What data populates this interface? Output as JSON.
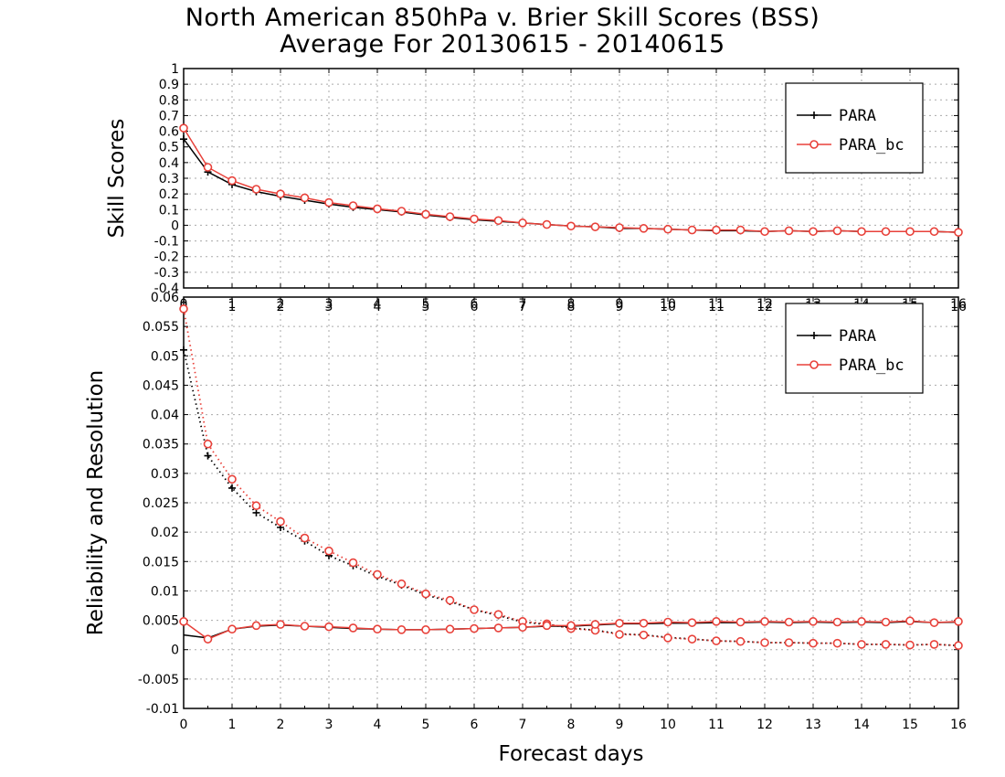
{
  "header": {
    "title_line1": "North American 850hPa v. Brier Skill Scores (BSS)",
    "title_line2": "Average For 20130615 - 20140615"
  },
  "colors": {
    "para": "#000000",
    "para_bc": "#e8413a",
    "grid": "#aaaaaa"
  },
  "chart_data": [
    {
      "type": "line",
      "ylabel": "Skill Scores",
      "xlabel": "",
      "xlim": [
        0,
        16
      ],
      "ylim": [
        -0.4,
        1
      ],
      "x_ticks": [
        "0",
        "1",
        "2",
        "3",
        "4",
        "5",
        "6",
        "7",
        "8",
        "9",
        "10",
        "11",
        "12",
        "13",
        "14",
        "15",
        "16"
      ],
      "y_ticks": [
        "1",
        "0.9",
        "0.8",
        "0.7",
        "0.6",
        "0.5",
        "0.4",
        "0.3",
        "0.2",
        "0.1",
        "0",
        "-0.1",
        "-0.2",
        "-0.3",
        "-0.4"
      ],
      "grid": true,
      "legend_position": "top-right",
      "x": [
        0,
        0.5,
        1,
        1.5,
        2,
        2.5,
        3,
        3.5,
        4,
        4.5,
        5,
        5.5,
        6,
        6.5,
        7,
        7.5,
        8,
        8.5,
        9,
        9.5,
        10,
        10.5,
        11,
        11.5,
        12,
        12.5,
        13,
        13.5,
        14,
        14.5,
        15,
        15.5,
        16
      ],
      "series": [
        {
          "name": "PARA",
          "color": "#000000",
          "marker": "plus",
          "style": "solid",
          "values": [
            0.55,
            0.34,
            0.26,
            0.215,
            0.185,
            0.16,
            0.135,
            0.115,
            0.1,
            0.085,
            0.065,
            0.05,
            0.035,
            0.025,
            0.015,
            0.005,
            -0.005,
            -0.01,
            -0.02,
            -0.02,
            -0.025,
            -0.03,
            -0.035,
            -0.035,
            -0.04,
            -0.035,
            -0.04,
            -0.035,
            -0.04,
            -0.04,
            -0.04,
            -0.04,
            -0.045
          ]
        },
        {
          "name": "PARA_bc",
          "color": "#e8413a",
          "marker": "circle",
          "style": "solid",
          "values": [
            0.62,
            0.37,
            0.285,
            0.23,
            0.2,
            0.175,
            0.145,
            0.125,
            0.105,
            0.09,
            0.07,
            0.055,
            0.04,
            0.03,
            0.015,
            0.005,
            -0.005,
            -0.01,
            -0.015,
            -0.02,
            -0.025,
            -0.03,
            -0.03,
            -0.03,
            -0.04,
            -0.035,
            -0.04,
            -0.035,
            -0.04,
            -0.04,
            -0.04,
            -0.04,
            -0.045
          ]
        }
      ]
    },
    {
      "type": "line",
      "ylabel": "Reliability and Resolution",
      "xlabel": "Forecast days",
      "xlim": [
        0,
        16
      ],
      "ylim": [
        -0.01,
        0.06
      ],
      "x_ticks": [
        "0",
        "1",
        "2",
        "3",
        "4",
        "5",
        "6",
        "7",
        "8",
        "9",
        "10",
        "11",
        "12",
        "13",
        "14",
        "15",
        "16"
      ],
      "top_x_ticks": [
        "0",
        "1",
        "2",
        "3",
        "4",
        "5",
        "6",
        "7",
        "8",
        "9",
        "10",
        "11",
        "12",
        "13",
        "14",
        "15",
        "16"
      ],
      "y_ticks": [
        "0.06",
        "0.055",
        "0.05",
        "0.045",
        "0.04",
        "0.035",
        "0.03",
        "0.025",
        "0.02",
        "0.015",
        "0.01",
        "0.005",
        "0",
        "-0.005",
        "-0.01"
      ],
      "grid": true,
      "legend_position": "top-right",
      "x": [
        0,
        0.5,
        1,
        1.5,
        2,
        2.5,
        3,
        3.5,
        4,
        4.5,
        5,
        5.5,
        6,
        6.5,
        7,
        7.5,
        8,
        8.5,
        9,
        9.5,
        10,
        10.5,
        11,
        11.5,
        12,
        12.5,
        13,
        13.5,
        14,
        14.5,
        15,
        15.5,
        16
      ],
      "series": [
        {
          "name": "PARA",
          "color": "#000000",
          "marker": "plus",
          "style": "dotted",
          "values": [
            0.051,
            0.033,
            0.0275,
            0.0233,
            0.0208,
            0.0185,
            0.016,
            0.0143,
            0.0125,
            0.011,
            0.0093,
            0.0082,
            0.0068,
            0.0058,
            0.0047,
            0.0043,
            0.0037,
            0.0033,
            0.0027,
            0.0025,
            0.0021,
            0.0018,
            0.0015,
            0.0014,
            0.0012,
            0.0012,
            0.0011,
            0.0011,
            0.0009,
            0.0009,
            0.0008,
            0.0009,
            0.0007
          ]
        },
        {
          "name": "PARA_bc",
          "color": "#e8413a",
          "marker": "circle",
          "style": "dotted",
          "values": [
            0.058,
            0.035,
            0.029,
            0.0245,
            0.0218,
            0.019,
            0.0168,
            0.0148,
            0.0128,
            0.0112,
            0.0095,
            0.0084,
            0.0068,
            0.006,
            0.0048,
            0.0044,
            0.0036,
            0.0033,
            0.0026,
            0.0025,
            0.002,
            0.0018,
            0.0015,
            0.0014,
            0.0012,
            0.0012,
            0.0011,
            0.0011,
            0.0009,
            0.0009,
            0.0008,
            0.0009,
            0.0007
          ]
        },
        {
          "name": "",
          "color": "#000000",
          "marker": "none",
          "style": "solid",
          "values": [
            0.0025,
            0.002,
            0.0035,
            0.004,
            0.0042,
            0.004,
            0.0038,
            0.0036,
            0.0035,
            0.0034,
            0.0034,
            0.0035,
            0.0036,
            0.0037,
            0.0038,
            0.004,
            0.004,
            0.0042,
            0.0044,
            0.0044,
            0.0045,
            0.0045,
            0.0046,
            0.0046,
            0.0047,
            0.0046,
            0.0047,
            0.0046,
            0.0047,
            0.0046,
            0.0048,
            0.0046,
            0.0047
          ]
        },
        {
          "name": "",
          "color": "#e8413a",
          "marker": "circle",
          "style": "solid",
          "values": [
            0.0048,
            0.0018,
            0.0035,
            0.0041,
            0.0043,
            0.004,
            0.0039,
            0.0037,
            0.0035,
            0.0034,
            0.0034,
            0.0035,
            0.0036,
            0.0037,
            0.0038,
            0.0041,
            0.0041,
            0.0043,
            0.0045,
            0.0045,
            0.0047,
            0.0046,
            0.0048,
            0.0047,
            0.0048,
            0.0047,
            0.0048,
            0.0047,
            0.0048,
            0.0047,
            0.0049,
            0.0046,
            0.0048
          ]
        }
      ]
    }
  ]
}
